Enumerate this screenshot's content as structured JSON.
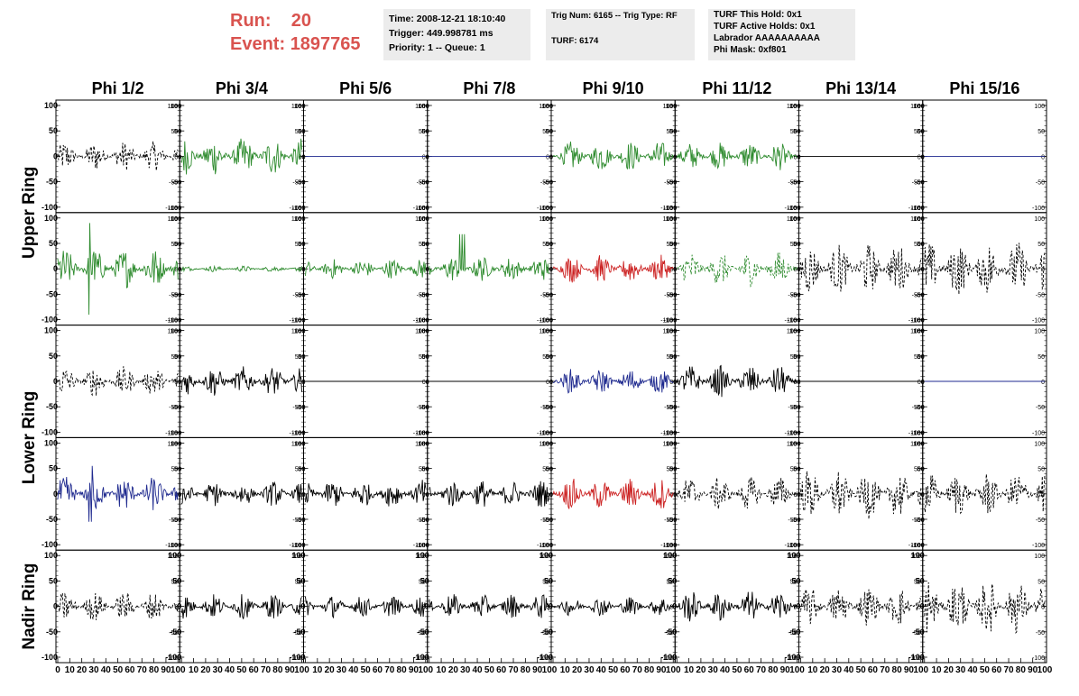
{
  "header": {
    "run_label": "Run:",
    "run_value": "20",
    "event_label": "Event:",
    "event_value": "1897765",
    "box1": [
      "Time: 2008-12-21 18:10:40",
      "Trigger: 449.998781 ms",
      "Priority: 1 -- Queue: 1"
    ],
    "box2": [
      "Trig Num: 6165 -- Trig Type: RF",
      "",
      "TURF: 6174"
    ],
    "box3": [
      "TURF This Hold: 0x1",
      "TURF Active Holds: 0x1",
      "Labrador AAAAAAAAAA",
      "Phi Mask: 0xf801"
    ]
  },
  "colors": {
    "green": "#2e8b2e",
    "red": "#cc2222",
    "blue": "#1f2a8f",
    "black": "#000000",
    "run_text": "#d9534f"
  },
  "chart_data": {
    "type": "line",
    "columns": [
      "Phi 1/2",
      "Phi 3/4",
      "Phi 5/6",
      "Phi 7/8",
      "Phi 9/10",
      "Phi 11/12",
      "Phi 13/14",
      "Phi 15/16"
    ],
    "row_labels": [
      {
        "label": "Upper Ring",
        "rows": [
          0,
          1
        ]
      },
      {
        "label": "Lower Ring",
        "rows": [
          2,
          3
        ]
      },
      {
        "label": "Nadir Ring",
        "rows": [
          4
        ]
      }
    ],
    "xlim": [
      0,
      100
    ],
    "ylim": [
      -100,
      100
    ],
    "y_ticks": [
      -100,
      -50,
      0,
      50,
      100
    ],
    "x_tick_labels": [
      "0",
      "10",
      "20",
      "30",
      "40",
      "50",
      "60",
      "70",
      "80",
      "90",
      "100"
    ],
    "panels": [
      [
        {
          "color": "black",
          "dash": true,
          "amp": 30
        },
        {
          "color": "green",
          "dash": false,
          "amp": 38
        },
        {
          "color": "blue",
          "dash": false,
          "amp": 0
        },
        {
          "color": "blue",
          "dash": false,
          "amp": 0
        },
        {
          "color": "green",
          "dash": false,
          "amp": 30
        },
        {
          "color": "green",
          "dash": false,
          "amp": 28
        },
        {
          "color": "black",
          "dash": false,
          "amp": 0
        },
        {
          "color": "blue",
          "dash": false,
          "amp": 0
        }
      ],
      [
        {
          "color": "green",
          "dash": false,
          "amp": 40,
          "spike": 90
        },
        {
          "color": "green",
          "dash": false,
          "amp": 6
        },
        {
          "color": "green",
          "dash": false,
          "amp": 20
        },
        {
          "color": "green",
          "dash": false,
          "amp": 25,
          "spike": 68
        },
        {
          "color": "red",
          "dash": false,
          "amp": 28
        },
        {
          "color": "green",
          "dash": true,
          "amp": 35
        },
        {
          "color": "black",
          "dash": true,
          "amp": 50
        },
        {
          "color": "black",
          "dash": true,
          "amp": 55
        }
      ],
      [
        {
          "color": "black",
          "dash": true,
          "amp": 30
        },
        {
          "color": "black",
          "dash": false,
          "amp": 30
        },
        {
          "color": "black",
          "dash": false,
          "amp": 0
        },
        {
          "color": "black",
          "dash": false,
          "amp": 0
        },
        {
          "color": "blue",
          "dash": false,
          "amp": 25
        },
        {
          "color": "black",
          "dash": false,
          "amp": 32
        },
        {
          "color": "black",
          "dash": false,
          "amp": 0
        },
        {
          "color": "blue",
          "dash": false,
          "amp": 0
        }
      ],
      [
        {
          "color": "blue",
          "dash": false,
          "amp": 35,
          "spike": 55
        },
        {
          "color": "black",
          "dash": false,
          "amp": 25
        },
        {
          "color": "black",
          "dash": false,
          "amp": 28
        },
        {
          "color": "black",
          "dash": false,
          "amp": 28
        },
        {
          "color": "red",
          "dash": false,
          "amp": 32
        },
        {
          "color": "black",
          "dash": true,
          "amp": 35
        },
        {
          "color": "black",
          "dash": true,
          "amp": 50
        },
        {
          "color": "black",
          "dash": true,
          "amp": 45
        }
      ],
      [
        {
          "color": "black",
          "dash": true,
          "amp": 30
        },
        {
          "color": "black",
          "dash": false,
          "amp": 25
        },
        {
          "color": "black",
          "dash": false,
          "amp": 22
        },
        {
          "color": "black",
          "dash": false,
          "amp": 25
        },
        {
          "color": "black",
          "dash": false,
          "amp": 20
        },
        {
          "color": "black",
          "dash": false,
          "amp": 32
        },
        {
          "color": "black",
          "dash": true,
          "amp": 40
        },
        {
          "color": "black",
          "dash": true,
          "amp": 55
        }
      ]
    ]
  }
}
